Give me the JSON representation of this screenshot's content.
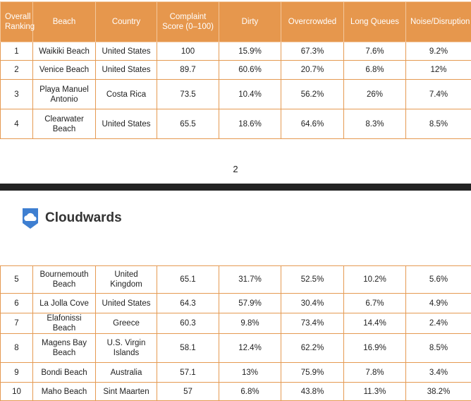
{
  "table": {
    "header": [
      "Overall Ranking",
      "Beach",
      "Country",
      "Complaint Score (0–100)",
      "Dirty",
      "Overcrowded",
      "Long Queues",
      "Noise/Disruption"
    ],
    "rows": [
      [
        "1",
        "Waikiki Beach",
        "United States",
        "100",
        "15.9%",
        "67.3%",
        "7.6%",
        "9.2%"
      ],
      [
        "2",
        "Venice Beach",
        "United States",
        "89.7",
        "60.6%",
        "20.7%",
        "6.8%",
        "12%"
      ],
      [
        "3",
        "Playa Manuel Antonio",
        "Costa Rica",
        "73.5",
        "10.4%",
        "56.2%",
        "26%",
        "7.4%"
      ],
      [
        "4",
        "Clearwater Beach",
        "United States",
        "65.5",
        "18.6%",
        "64.6%",
        "8.3%",
        "8.5%"
      ]
    ]
  },
  "page_number": "2",
  "logo": {
    "text": "Cloudwards"
  },
  "table_continued": {
    "rows": [
      [
        "5",
        "Bournemouth Beach",
        "United Kingdom",
        "65.1",
        "31.7%",
        "52.5%",
        "10.2%",
        "5.6%"
      ],
      [
        "6",
        "La Jolla Cove",
        "United States",
        "64.3",
        "57.9%",
        "30.4%",
        "6.7%",
        "4.9%"
      ],
      [
        "7",
        "Elafonissi Beach",
        "Greece",
        "60.3",
        "9.8%",
        "73.4%",
        "14.4%",
        "2.4%"
      ],
      [
        "8",
        "Magens Bay Beach",
        "U.S. Virgin Islands",
        "58.1",
        "12.4%",
        "62.2%",
        "16.9%",
        "8.5%"
      ],
      [
        "9",
        "Bondi Beach",
        "Australia",
        "57.1",
        "13%",
        "75.9%",
        "7.8%",
        "3.4%"
      ],
      [
        "10",
        "Maho Beach",
        "Sint Maarten",
        "57",
        "6.8%",
        "43.8%",
        "11.3%",
        "38.2%"
      ]
    ]
  }
}
